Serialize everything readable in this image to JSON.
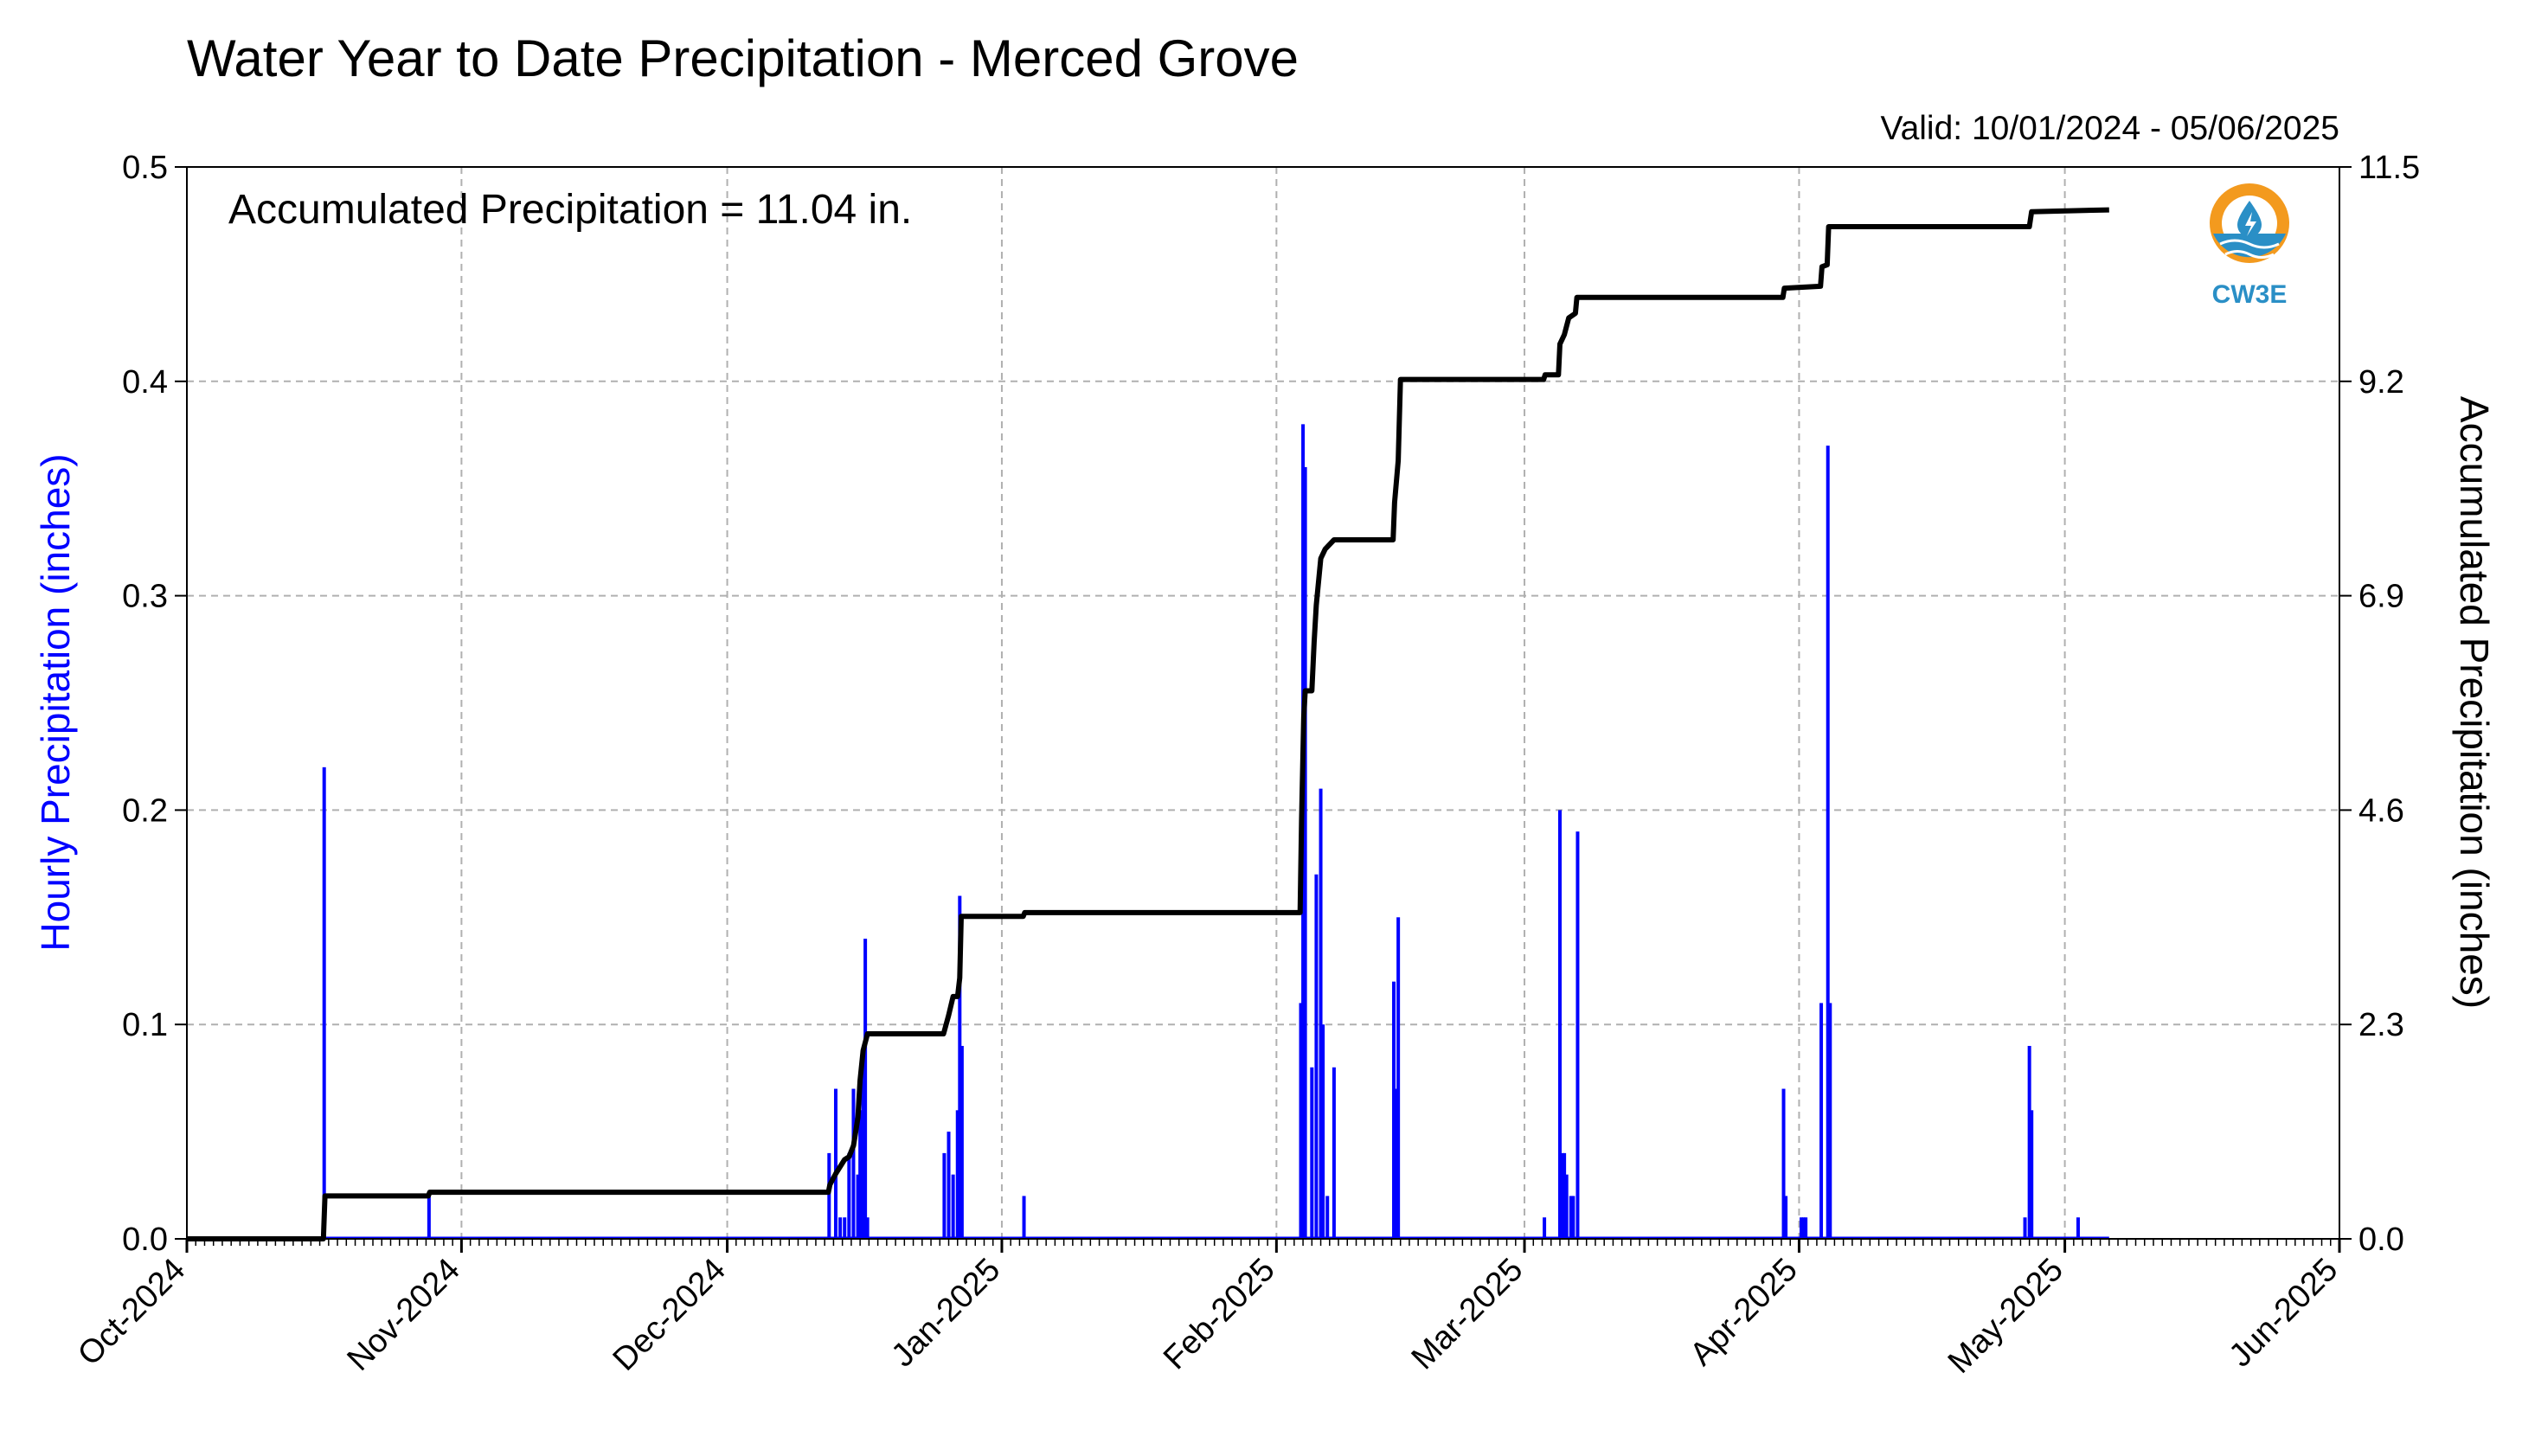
{
  "chart_data": {
    "type": "bar",
    "title": "Water Year to Date Precipitation - Merced Grove",
    "valid_text": "Valid: 10/01/2024 - 05/06/2025",
    "annotation": "Accumulated Precipitation = 11.04 in.",
    "logo_text": "CW3E",
    "ylabel_left": "Hourly Precipitation (inches)",
    "ylabel_right": "Accumulated Precipitation (inches)",
    "xlim": [
      "2024-10-01",
      "2025-06-01"
    ],
    "ylim_left": [
      0,
      0.5
    ],
    "ylim_right": [
      0,
      11.5
    ],
    "yticks_left": [
      "0.0",
      "0.1",
      "0.2",
      "0.3",
      "0.4",
      "0.5"
    ],
    "yticks_right": [
      "0.0",
      "2.3",
      "4.6",
      "6.9",
      "9.2",
      "11.5"
    ],
    "xticks": [
      {
        "date": "2024-10-01",
        "label": "Oct-2024"
      },
      {
        "date": "2024-11-01",
        "label": "Nov-2024"
      },
      {
        "date": "2024-12-01",
        "label": "Dec-2024"
      },
      {
        "date": "2025-01-01",
        "label": "Jan-2025"
      },
      {
        "date": "2025-02-01",
        "label": "Feb-2025"
      },
      {
        "date": "2025-03-01",
        "label": "Mar-2025"
      },
      {
        "date": "2025-04-01",
        "label": "Apr-2025"
      },
      {
        "date": "2025-05-01",
        "label": "May-2025"
      },
      {
        "date": "2025-06-01",
        "label": "Jun-2025"
      }
    ],
    "grid": true,
    "colors": {
      "hourly": "#0000ff",
      "accumulated": "#000000",
      "grid": "#b0b0b0",
      "logo_orange": "#f39a1e",
      "logo_blue": "#2a8fc6"
    },
    "series": [
      {
        "name": "Hourly Precipitation",
        "type": "bar",
        "points": [
          {
            "x": "2024-10-16 12:00",
            "y": 0.22
          },
          {
            "x": "2024-10-28 08:00",
            "y": 0.02
          },
          {
            "x": "2024-12-12 12:00",
            "y": 0.04
          },
          {
            "x": "2024-12-13 06:00",
            "y": 0.07
          },
          {
            "x": "2024-12-13 18:00",
            "y": 0.01
          },
          {
            "x": "2024-12-14 06:00",
            "y": 0.01
          },
          {
            "x": "2024-12-14 18:00",
            "y": 0.04
          },
          {
            "x": "2024-12-15 06:00",
            "y": 0.07
          },
          {
            "x": "2024-12-15 18:00",
            "y": 0.03
          },
          {
            "x": "2024-12-16 00:00",
            "y": 0.06
          },
          {
            "x": "2024-12-16 08:00",
            "y": 0.08
          },
          {
            "x": "2024-12-16 14:00",
            "y": 0.14
          },
          {
            "x": "2024-12-16 20:00",
            "y": 0.01
          },
          {
            "x": "2024-12-25 12:00",
            "y": 0.04
          },
          {
            "x": "2024-12-26 00:00",
            "y": 0.05
          },
          {
            "x": "2024-12-26 12:00",
            "y": 0.03
          },
          {
            "x": "2024-12-27 00:00",
            "y": 0.06
          },
          {
            "x": "2024-12-27 06:00",
            "y": 0.16
          },
          {
            "x": "2024-12-27 12:00",
            "y": 0.09
          },
          {
            "x": "2025-01-03 12:00",
            "y": 0.02
          },
          {
            "x": "2025-02-03 18:00",
            "y": 0.11
          },
          {
            "x": "2025-02-04 00:00",
            "y": 0.38
          },
          {
            "x": "2025-02-04 06:00",
            "y": 0.36
          },
          {
            "x": "2025-02-05 00:00",
            "y": 0.08
          },
          {
            "x": "2025-02-05 12:00",
            "y": 0.17
          },
          {
            "x": "2025-02-06 00:00",
            "y": 0.21
          },
          {
            "x": "2025-02-06 06:00",
            "y": 0.1
          },
          {
            "x": "2025-02-06 18:00",
            "y": 0.02
          },
          {
            "x": "2025-02-07 12:00",
            "y": 0.08
          },
          {
            "x": "2025-02-14 06:00",
            "y": 0.12
          },
          {
            "x": "2025-02-14 12:00",
            "y": 0.07
          },
          {
            "x": "2025-02-14 18:00",
            "y": 0.15
          },
          {
            "x": "2025-03-03 06:00",
            "y": 0.01
          },
          {
            "x": "2025-03-05 00:00",
            "y": 0.2
          },
          {
            "x": "2025-03-05 06:00",
            "y": 0.04
          },
          {
            "x": "2025-03-05 12:00",
            "y": 0.04
          },
          {
            "x": "2025-03-05 18:00",
            "y": 0.03
          },
          {
            "x": "2025-03-06 06:00",
            "y": 0.02
          },
          {
            "x": "2025-03-06 12:00",
            "y": 0.02
          },
          {
            "x": "2025-03-07 00:00",
            "y": 0.19
          },
          {
            "x": "2025-03-30 06:00",
            "y": 0.07
          },
          {
            "x": "2025-03-30 12:00",
            "y": 0.02
          },
          {
            "x": "2025-04-01 06:00",
            "y": 0.01
          },
          {
            "x": "2025-04-01 12:00",
            "y": 0.01
          },
          {
            "x": "2025-04-01 18:00",
            "y": 0.01
          },
          {
            "x": "2025-04-03 12:00",
            "y": 0.11
          },
          {
            "x": "2025-04-04 06:00",
            "y": 0.37
          },
          {
            "x": "2025-04-04 12:00",
            "y": 0.11
          },
          {
            "x": "2025-04-26 12:00",
            "y": 0.01
          },
          {
            "x": "2025-04-27 00:00",
            "y": 0.09
          },
          {
            "x": "2025-04-27 06:00",
            "y": 0.06
          },
          {
            "x": "2025-05-02 12:00",
            "y": 0.01
          }
        ]
      },
      {
        "name": "Accumulated Precipitation",
        "type": "line",
        "points": [
          {
            "x": "2024-10-01 00:00",
            "y": 0.0
          },
          {
            "x": "2024-10-16 10:00",
            "y": 0.0
          },
          {
            "x": "2024-10-16 14:00",
            "y": 0.46
          },
          {
            "x": "2024-10-28 06:00",
            "y": 0.46
          },
          {
            "x": "2024-10-28 10:00",
            "y": 0.5
          },
          {
            "x": "2024-12-12 10:00",
            "y": 0.5
          },
          {
            "x": "2024-12-12 14:00",
            "y": 0.58
          },
          {
            "x": "2024-12-13 06:00",
            "y": 0.7
          },
          {
            "x": "2024-12-14 06:00",
            "y": 0.85
          },
          {
            "x": "2024-12-14 18:00",
            "y": 0.88
          },
          {
            "x": "2024-12-15 06:00",
            "y": 1.0
          },
          {
            "x": "2024-12-15 18:00",
            "y": 1.3
          },
          {
            "x": "2024-12-16 00:00",
            "y": 1.7
          },
          {
            "x": "2024-12-16 08:00",
            "y": 2.02
          },
          {
            "x": "2024-12-16 20:00",
            "y": 2.2
          },
          {
            "x": "2024-12-25 10:00",
            "y": 2.2
          },
          {
            "x": "2024-12-26 00:00",
            "y": 2.4
          },
          {
            "x": "2024-12-26 12:00",
            "y": 2.6
          },
          {
            "x": "2024-12-27 00:00",
            "y": 2.6
          },
          {
            "x": "2024-12-27 06:00",
            "y": 2.8
          },
          {
            "x": "2024-12-27 10:00",
            "y": 3.46
          },
          {
            "x": "2025-01-03 10:00",
            "y": 3.46
          },
          {
            "x": "2025-01-03 14:00",
            "y": 3.5
          },
          {
            "x": "2025-02-03 16:00",
            "y": 3.5
          },
          {
            "x": "2025-02-03 20:00",
            "y": 4.5
          },
          {
            "x": "2025-02-04 02:00",
            "y": 5.6
          },
          {
            "x": "2025-02-04 06:00",
            "y": 5.88
          },
          {
            "x": "2025-02-05 00:00",
            "y": 5.88
          },
          {
            "x": "2025-02-05 06:00",
            "y": 6.4
          },
          {
            "x": "2025-02-05 12:00",
            "y": 6.8
          },
          {
            "x": "2025-02-06 00:00",
            "y": 7.3
          },
          {
            "x": "2025-02-06 12:00",
            "y": 7.4
          },
          {
            "x": "2025-02-07 12:00",
            "y": 7.5
          },
          {
            "x": "2025-02-14 04:00",
            "y": 7.5
          },
          {
            "x": "2025-02-14 08:00",
            "y": 7.9
          },
          {
            "x": "2025-02-14 18:00",
            "y": 8.35
          },
          {
            "x": "2025-02-15 00:00",
            "y": 9.22
          },
          {
            "x": "2025-03-03 04:00",
            "y": 9.22
          },
          {
            "x": "2025-03-03 08:00",
            "y": 9.27
          },
          {
            "x": "2025-03-04 20:00",
            "y": 9.27
          },
          {
            "x": "2025-03-05 00:00",
            "y": 9.6
          },
          {
            "x": "2025-03-05 12:00",
            "y": 9.7
          },
          {
            "x": "2025-03-06 00:00",
            "y": 9.88
          },
          {
            "x": "2025-03-06 18:00",
            "y": 9.93
          },
          {
            "x": "2025-03-06 22:00",
            "y": 10.1
          },
          {
            "x": "2025-03-07 02:00",
            "y": 10.1
          },
          {
            "x": "2025-03-30 04:00",
            "y": 10.1
          },
          {
            "x": "2025-03-30 08:00",
            "y": 10.2
          },
          {
            "x": "2025-04-03 10:00",
            "y": 10.22
          },
          {
            "x": "2025-04-03 14:00",
            "y": 10.43
          },
          {
            "x": "2025-04-04 04:00",
            "y": 10.45
          },
          {
            "x": "2025-04-04 08:00",
            "y": 10.86
          },
          {
            "x": "2025-04-27 00:00",
            "y": 10.86
          },
          {
            "x": "2025-04-27 06:00",
            "y": 11.02
          },
          {
            "x": "2025-05-06 00:00",
            "y": 11.04
          }
        ]
      }
    ]
  }
}
